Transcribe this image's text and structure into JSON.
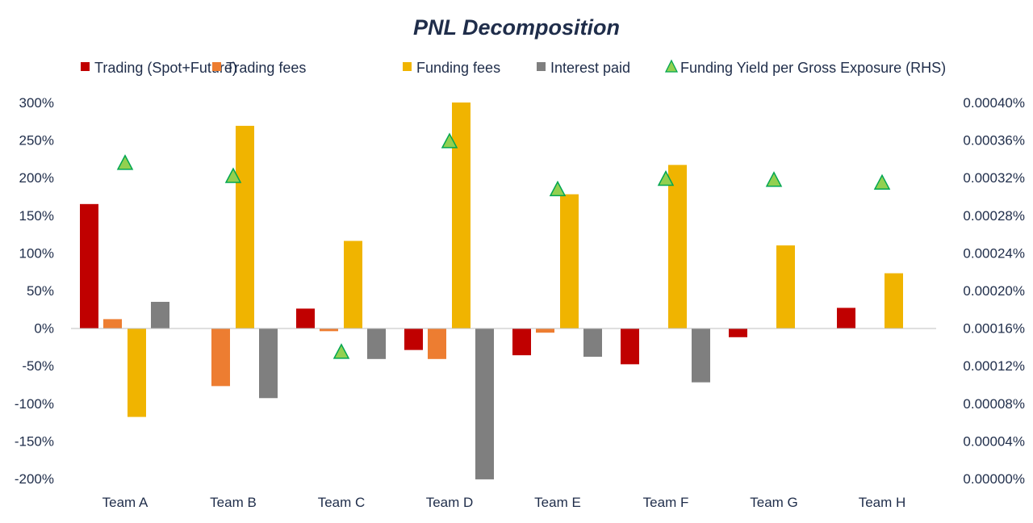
{
  "chart_data": {
    "type": "bar",
    "title": "PNL Decomposition",
    "categories": [
      "Team A",
      "Team B",
      "Team C",
      "Team D",
      "Team E",
      "Team F",
      "Team G",
      "Team H"
    ],
    "series": [
      {
        "name": "Trading (Spot+Future)",
        "color": "#c00000",
        "values": [
          165,
          0,
          26,
          -29,
          -36,
          -48,
          -12,
          27
        ]
      },
      {
        "name": "Trading fees",
        "color": "#ed7d31",
        "values": [
          12,
          -77,
          -4,
          -41,
          -6,
          0,
          0,
          0
        ]
      },
      {
        "name": "Funding fees",
        "color": "#f0b400",
        "values": [
          -118,
          269,
          116,
          300,
          178,
          217,
          110,
          73
        ]
      },
      {
        "name": "Interest paid",
        "color": "#7f7f7f",
        "values": [
          35,
          -93,
          -41,
          -201,
          -38,
          -72,
          0,
          0
        ]
      },
      {
        "name": "Funding Yield per Gross Exposure (RHS)",
        "color": "#92d050",
        "type": "scatter",
        "axis": "right",
        "values": [
          0.000335,
          0.000321,
          0.000134,
          0.000358,
          0.000307,
          0.000318,
          0.000317,
          0.000314
        ]
      }
    ],
    "ylim": [
      -200,
      300
    ],
    "yticks": [
      "300%",
      "250%",
      "200%",
      "150%",
      "100%",
      "50%",
      "0%",
      "-50%",
      "-100%",
      "-150%",
      "-200%"
    ],
    "y2lim": [
      0,
      0.0004
    ],
    "y2ticks": [
      "0.00040%",
      "0.00036%",
      "0.00032%",
      "0.00028%",
      "0.00024%",
      "0.00020%",
      "0.00016%",
      "0.00012%",
      "0.00008%",
      "0.00004%",
      "0.00000%"
    ],
    "legend": "top",
    "grid": false
  }
}
